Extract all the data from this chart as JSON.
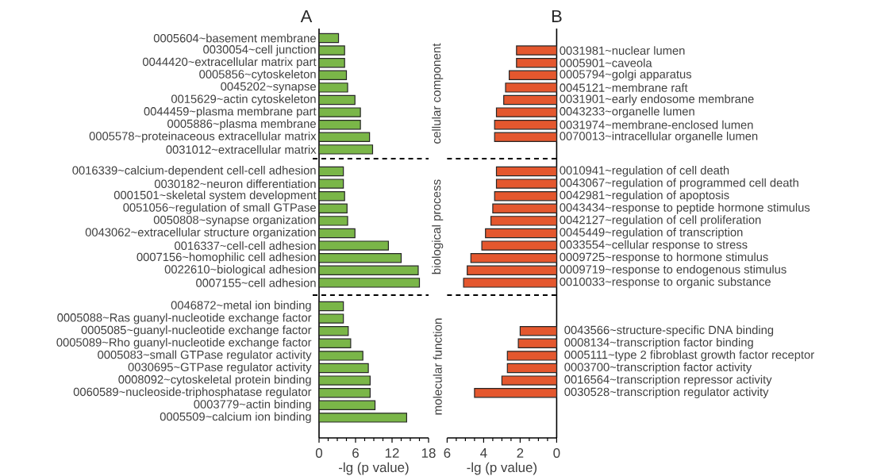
{
  "chart_data": [
    {
      "type": "bar",
      "orientation": "horizontal",
      "title": "A",
      "tick_labels": "y",
      "color": "#7ab648",
      "xlim": [
        0,
        18
      ],
      "annotations": [
        "cellular component"
      ],
      "categories": [
        "0005604~basement membrane",
        "0030054~cell junction",
        "0044420~extracellular matrix part",
        "0005856~cytoskeleton",
        "0045202~synapse",
        "0015629~actin cytoskeleton",
        "0044459~plasma membrane part",
        "0005886~plasma membrane",
        "0005578~proteinaceous extracellular matrix",
        "0031012~extracellular matrix"
      ],
      "values": [
        3.2,
        4.2,
        4.2,
        4.5,
        4.7,
        5.9,
        6.8,
        6.8,
        8.3,
        8.8
      ]
    },
    {
      "type": "bar",
      "orientation": "horizontal",
      "tick_labels": "y",
      "color": "#7ab648",
      "xlim": [
        0,
        18
      ],
      "annotations": [
        "biological process"
      ],
      "categories": [
        "0016339~calcium-dependent cell-cell adhesion",
        "0030182~neuron differentiation",
        "0001501~skeletal system development",
        "0051056~regulation of small GTPase",
        "0050808~synapse organization",
        "0043062~extracellular structure organization",
        "0016337~cell-cell adhesion",
        "0007156~homophilic cell adhesion",
        "0022610~biological adhesion",
        "0007155~cell adhesion"
      ],
      "values": [
        4.0,
        4.0,
        4.2,
        4.6,
        4.7,
        5.9,
        11.4,
        13.5,
        16.3,
        16.5
      ]
    },
    {
      "type": "bar",
      "orientation": "horizontal",
      "color": "#7ab648",
      "xlim": [
        0,
        18
      ],
      "xticks": [
        0,
        6,
        12,
        18
      ],
      "xlabel": "-lg (p value)",
      "annotations": [
        "molecular function"
      ],
      "categories": [
        "0046872~metal ion binding",
        "0005088~Ras guanyl-nucleotide exchange factor",
        "0005085~guanyl-nucleotide exchange factor",
        "0005089~Rho guanyl-nucleotide exchange factor",
        "0005083~small GTPase regulator activity",
        "0030695~GTPase regulator activity",
        "0008092~cytoskeletal protein binding",
        "0060589~nucleoside-triphosphatase regulator",
        "0003779~actin binding",
        "0005509~calcium ion binding"
      ],
      "values": [
        4.0,
        4.0,
        4.8,
        5.2,
        7.2,
        8.1,
        8.4,
        8.4,
        9.2,
        14.4
      ]
    },
    {
      "type": "bar",
      "orientation": "horizontal",
      "title": "B",
      "tick_labels": "y",
      "color": "#e4572e",
      "xlim": [
        6,
        0
      ],
      "categories": [
        "0031981~nuclear lumen",
        "0005901~caveola",
        "0005794~golgi apparatus",
        "0045121~membrane raft",
        "0031901~early endosome membrane",
        "0043233~organelle lumen",
        "0031974~membrane-enclosed lumen",
        "0070013~intracellular organelle lumen"
      ],
      "values": [
        2.2,
        2.2,
        2.6,
        2.8,
        2.9,
        3.3,
        3.4,
        3.4
      ]
    },
    {
      "type": "bar",
      "orientation": "horizontal",
      "tick_labels": "y",
      "color": "#e4572e",
      "xlim": [
        6,
        0
      ],
      "categories": [
        "0010941~regulation of cell death",
        "0043067~regulation of programmed cell death",
        "0042981~regulation of apoptosis",
        "0043434~response to peptide hormone stimulus",
        "0042127~regulation of cell proliferation",
        "0045449~regulation of transcription",
        "0033554~cellular response to stress",
        "0009725~response to hormone stimulus",
        "0009719~response to endogenous stimulus",
        "0010033~response to organic substance"
      ],
      "values": [
        3.3,
        3.3,
        3.4,
        3.5,
        3.6,
        3.9,
        4.1,
        4.7,
        4.9,
        5.1
      ]
    },
    {
      "type": "bar",
      "orientation": "horizontal",
      "color": "#e4572e",
      "xlim": [
        6,
        0
      ],
      "xticks": [
        6,
        4,
        2,
        0
      ],
      "xlabel": "-lg (p value)",
      "categories": [
        "0043566~structure-specific DNA binding",
        "0008134~transcription factor binding",
        "0005111~type 2 fibroblast growth factor receptor",
        "0003700~transcription factor activity",
        "0016564~transcription repressor activity",
        "0030528~transcription regulator activity"
      ],
      "values": [
        2.0,
        2.1,
        2.7,
        2.7,
        3.0,
        4.5
      ]
    }
  ]
}
